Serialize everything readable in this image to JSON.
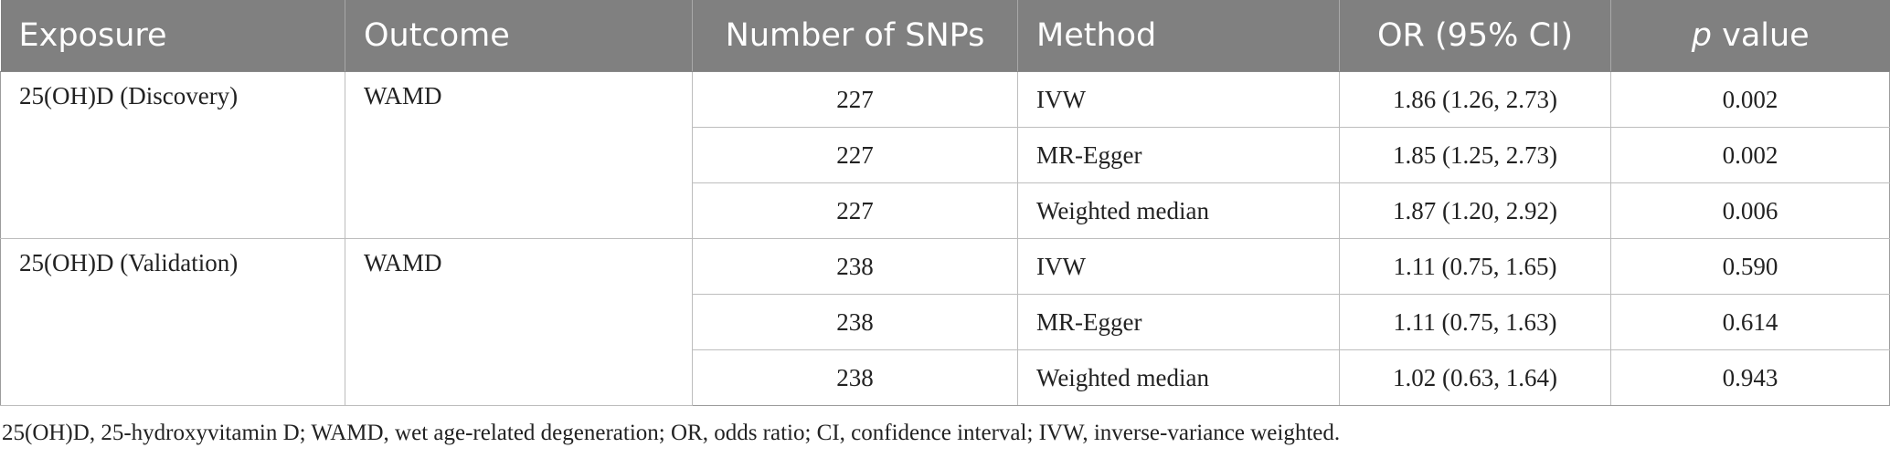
{
  "table": {
    "headers": {
      "exposure": "Exposure",
      "outcome": "Outcome",
      "n_snps": "Number of SNPs",
      "method": "Method",
      "or_ci": "OR (95% CI)",
      "p_value_italic": "p",
      "p_value_rest": " value"
    },
    "groups": [
      {
        "exposure": "25(OH)D (Discovery)",
        "outcome": "WAMD",
        "rows": [
          {
            "n_snps": "227",
            "method": "IVW",
            "or_ci": "1.86 (1.26, 2.73)",
            "p_value": "0.002"
          },
          {
            "n_snps": "227",
            "method": "MR-Egger",
            "or_ci": "1.85 (1.25, 2.73)",
            "p_value": "0.002"
          },
          {
            "n_snps": "227",
            "method": "Weighted median",
            "or_ci": "1.87 (1.20, 2.92)",
            "p_value": "0.006"
          }
        ]
      },
      {
        "exposure": "25(OH)D (Validation)",
        "outcome": "WAMD",
        "rows": [
          {
            "n_snps": "238",
            "method": "IVW",
            "or_ci": "1.11 (0.75, 1.65)",
            "p_value": "0.590"
          },
          {
            "n_snps": "238",
            "method": "MR-Egger",
            "or_ci": "1.11 (0.75, 1.63)",
            "p_value": "0.614"
          },
          {
            "n_snps": "238",
            "method": "Weighted median",
            "or_ci": "1.02 (0.63, 1.64)",
            "p_value": "0.943"
          }
        ]
      }
    ]
  },
  "footnote": "25(OH)D, 25-hydroxyvitamin D; WAMD, wet age-related degeneration; OR, odds ratio; CI, confidence interval; IVW, inverse-variance weighted.",
  "colors": {
    "header_bg": "#808080",
    "header_text": "#ffffff",
    "grid": "#bdbdbd",
    "body_text": "#222222"
  }
}
